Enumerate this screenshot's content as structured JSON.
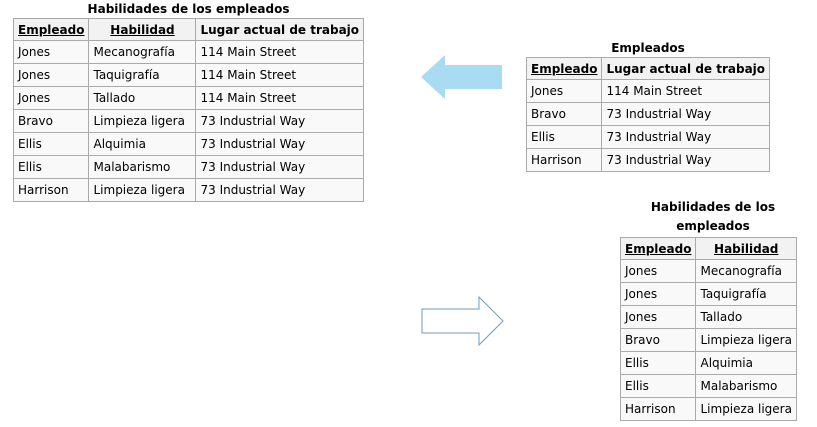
{
  "table_full": {
    "caption": "Habilidades de los empleados",
    "headers": [
      "Empleado",
      "Habilidad",
      "Lugar actual de trabajo"
    ],
    "rows": [
      [
        "Jones",
        "Mecanografía",
        "114 Main Street"
      ],
      [
        "Jones",
        "Taquigrafía",
        "114 Main Street"
      ],
      [
        "Jones",
        "Tallado",
        "114 Main Street"
      ],
      [
        "Bravo",
        "Limpieza ligera",
        "73 Industrial Way"
      ],
      [
        "Ellis",
        "Alquimia",
        "73 Industrial Way"
      ],
      [
        "Ellis",
        "Malabarismo",
        "73 Industrial Way"
      ],
      [
        "Harrison",
        "Limpieza ligera",
        "73 Industrial Way"
      ]
    ]
  },
  "table_employees": {
    "caption": "Empleados",
    "headers": [
      "Empleado",
      "Lugar actual de trabajo"
    ],
    "rows": [
      [
        "Jones",
        "114 Main Street"
      ],
      [
        "Bravo",
        "73 Industrial Way"
      ],
      [
        "Ellis",
        "73 Industrial Way"
      ],
      [
        "Harrison",
        "73 Industrial Way"
      ]
    ]
  },
  "table_skills": {
    "caption": "Habilidades de los empleados",
    "headers": [
      "Empleado",
      "Habilidad"
    ],
    "rows": [
      [
        "Jones",
        "Mecanografía"
      ],
      [
        "Jones",
        "Taquigrafía"
      ],
      [
        "Jones",
        "Tallado"
      ],
      [
        "Bravo",
        "Limpieza ligera"
      ],
      [
        "Ellis",
        "Alquimia"
      ],
      [
        "Ellis",
        "Malabarismo"
      ],
      [
        "Harrison",
        "Limpieza ligera"
      ]
    ]
  },
  "colors": {
    "arrow_left_fill": "#a9dcf2",
    "arrow_right_stroke": "#6e9bbf",
    "table_border": "#aaaaaa",
    "table_header_bg": "#f2f2f2",
    "table_cell_bg": "#f9f9f9"
  },
  "icons": {
    "arrow_left": "arrow-left-icon",
    "arrow_right": "arrow-right-icon"
  }
}
